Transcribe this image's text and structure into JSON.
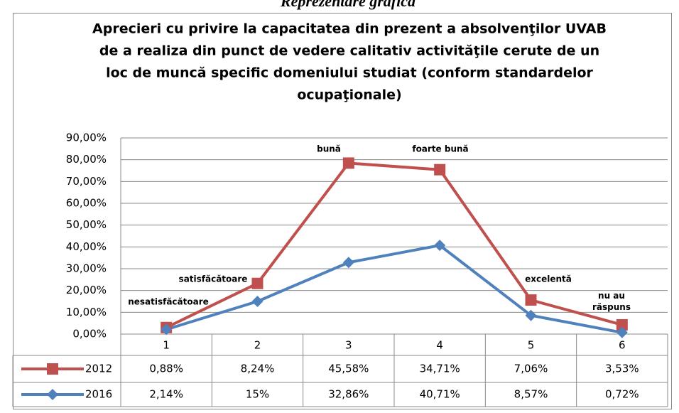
{
  "header": "Reprezentare grafică",
  "chart_data": {
    "type": "line",
    "stacked": true,
    "title": [
      "Aprecieri cu privire la capacitatea din prezent a absolvenţilor UVAB",
      "de a realiza din punct de vedere calitativ activităţile cerute de un",
      "loc de muncă specific domeniului studiat (conform standardelor",
      "ocupaţionale)"
    ],
    "categories": [
      "1",
      "2",
      "3",
      "4",
      "5",
      "6"
    ],
    "annotations": [
      "nesatisfăcătoare",
      "satisfăcătoare",
      "bună",
      "foarte bună",
      "excelentă",
      "nu au răspuns"
    ],
    "series": [
      {
        "name": "2012",
        "color": "#c0504d",
        "marker": "square",
        "values": [
          0.88,
          8.24,
          45.58,
          34.71,
          7.06,
          3.53
        ],
        "value_labels": [
          "0,88%",
          "8,24%",
          "45,58%",
          "34,71%",
          "7,06%",
          "3,53%"
        ]
      },
      {
        "name": "2016",
        "color": "#4f81bd",
        "marker": "diamond",
        "values": [
          2.14,
          15,
          32.86,
          40.71,
          8.57,
          0.72
        ],
        "value_labels": [
          "2,14%",
          "15%",
          "32,86%",
          "40,71%",
          "8,57%",
          "0,72%"
        ]
      }
    ],
    "ylim": [
      0,
      90
    ],
    "yticks": [
      {
        "value": 0,
        "label": "0,00%"
      },
      {
        "value": 10,
        "label": "10,00%"
      },
      {
        "value": 20,
        "label": "20,00%"
      },
      {
        "value": 30,
        "label": "30,00%"
      },
      {
        "value": 40,
        "label": "40,00%"
      },
      {
        "value": 50,
        "label": "50,00%"
      },
      {
        "value": 60,
        "label": "60,00%"
      },
      {
        "value": 70,
        "label": "70,00%"
      },
      {
        "value": 80,
        "label": "80,00%"
      },
      {
        "value": 90,
        "label": "90,00%"
      }
    ],
    "grid": true
  }
}
